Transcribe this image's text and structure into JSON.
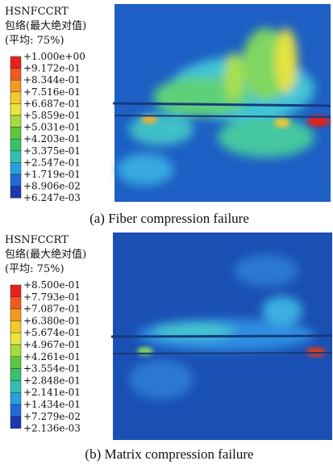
{
  "panels": [
    {
      "header": [
        "HSNFCCRT",
        "包络(最大绝对值)",
        "(平均: 75%)"
      ],
      "legend": [
        "+1.000e+00",
        "+9.172e-01",
        "+8.344e-01",
        "+7.516e-01",
        "+6.687e-01",
        "+5.859e-01",
        "+5.031e-01",
        "+4.203e-01",
        "+3.375e-01",
        "+2.547e-01",
        "+1.719e-01",
        "+8.906e-02",
        "+6.247e-03"
      ],
      "caption": "(a) Fiber compression failure"
    },
    {
      "header": [
        "HSNFCCRT",
        "包络(最大绝对值)",
        "(平均: 75%)"
      ],
      "legend": [
        "+8.500e-01",
        "+7.793e-01",
        "+7.087e-01",
        "+6.380e-01",
        "+5.674e-01",
        "+4.967e-01",
        "+4.261e-01",
        "+3.554e-01",
        "+2.848e-01",
        "+2.141e-01",
        "+1.434e-01",
        "+7.279e-02",
        "+2.136e-03"
      ],
      "caption": "(b) Matrix compression failure"
    }
  ]
}
